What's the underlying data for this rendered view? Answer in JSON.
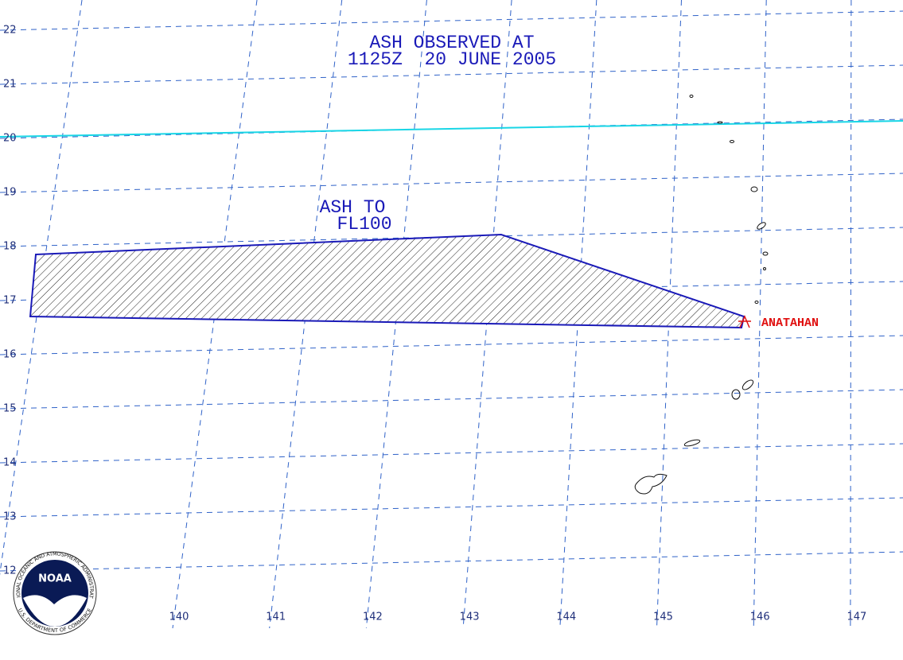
{
  "title": {
    "line1": "ASH OBSERVED AT",
    "line2": "1125Z  20 JUNE 2005"
  },
  "ash_area": {
    "label_line1": "ASH TO",
    "label_line2": "FL100"
  },
  "volcano": {
    "name": "ANATAHAN"
  },
  "latitude_labels": [
    22,
    21,
    20,
    19,
    18,
    17,
    16,
    15,
    14,
    13,
    12
  ],
  "longitude_labels": [
    140,
    141,
    142,
    143,
    144,
    145,
    146,
    147
  ],
  "logo": {
    "name": "NOAA",
    "agency": "NATIONAL OCEANIC AND ATMOSPHERIC ADMINISTRATION",
    "department": "U.S. DEPARTMENT OF COMMERCE"
  }
}
